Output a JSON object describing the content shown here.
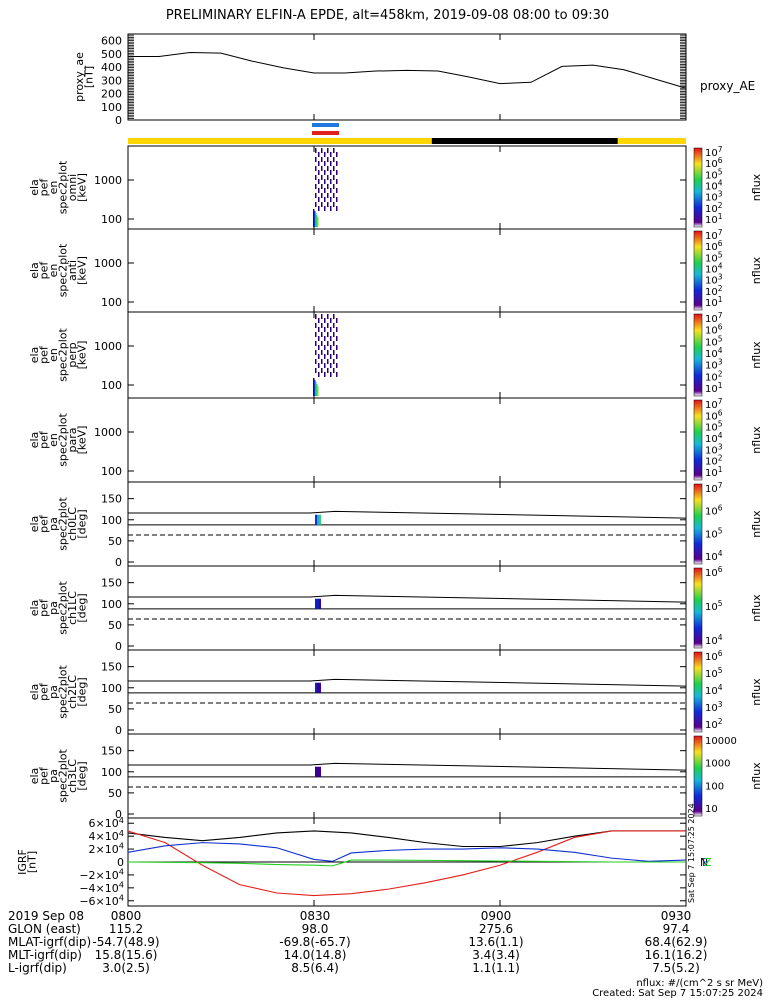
{
  "title": "PRELIMINARY ELFIN-A EPDE, alt=458km, 2019-09-08 08:00 to 09:30",
  "time_ticks": [
    "0800",
    "0830",
    "0900",
    "0930"
  ],
  "colors": {
    "black": "#000000",
    "yellow": "#FFD700",
    "red": "#E0201B",
    "blue": "#1E78E0",
    "green": "#1FD21F"
  },
  "status_bar": [
    {
      "from": "0800",
      "to": "0849",
      "color": "#FFD700"
    },
    {
      "from": "0849",
      "to": "0919",
      "color": "#000000"
    },
    {
      "from": "0919",
      "to": "0930",
      "color": "#FFD700"
    }
  ],
  "footer": {
    "rows": [
      {
        "label": "2019 Sep 08",
        "values": [
          "0800",
          "0830",
          "0900",
          "0930"
        ]
      },
      {
        "label": "GLON (east)",
        "values": [
          "115.2",
          "98.0",
          "275.6",
          "97.4"
        ]
      },
      {
        "label": "MLAT-igrf(dip)",
        "values": [
          "-54.7(48.9)",
          "-69.8(-65.7)",
          "13.6(1.1)",
          "68.4(62.9)"
        ]
      },
      {
        "label": "MLT-igrf(dip)",
        "values": [
          "15.8(15.6)",
          "14.0(14.8)",
          "3.4(3.4)",
          "16.1(16.2)"
        ]
      },
      {
        "label": "L-igrf(dip)",
        "values": [
          "3.0(2.5)",
          "8.5(6.4)",
          "1.1(1.1)",
          "7.5(5.2)"
        ]
      }
    ],
    "units_note": "nflux: #/(cm^2 s sr MeV)",
    "created": "Created: Sat Sep  7 15:07:25 2024",
    "side_stamp": "Sat Sep  7 15:07:25 2024"
  },
  "chart_data": [
    {
      "type": "line",
      "ylabel": [
        "proxy_ae",
        "[nT]"
      ],
      "yticks": [
        "600",
        "500",
        "400",
        "300",
        "200",
        "100",
        "0"
      ],
      "ylim": [
        0,
        650
      ],
      "series": [
        {
          "name": "proxy_AE",
          "x": [
            "0800",
            "0805",
            "0810",
            "0815",
            "0820",
            "0825",
            "0830",
            "0835",
            "0840",
            "0845",
            "0850",
            "0855",
            "0900",
            "0905",
            "0910",
            "0915",
            "0920",
            "0925",
            "0930"
          ],
          "values": [
            480,
            480,
            510,
            505,
            445,
            395,
            355,
            355,
            370,
            375,
            370,
            325,
            275,
            285,
            405,
            415,
            380,
            310,
            240
          ]
        }
      ]
    },
    {
      "type": "heatmap",
      "ylabel": [
        "ela",
        "pef",
        "en",
        "spec2plot",
        "omni",
        "[keV]"
      ],
      "yticks": [
        "1000",
        "100"
      ],
      "yscale": "log",
      "colorbar": {
        "label": "nflux",
        "ticks": [
          "10^7",
          "10^6",
          "10^5",
          "10^4",
          "10^3",
          "10^2",
          "10^1"
        ]
      }
    },
    {
      "type": "heatmap",
      "ylabel": [
        "ela",
        "pef",
        "en",
        "spec2plot",
        "anti",
        "[keV]"
      ],
      "yticks": [
        "1000",
        "100"
      ],
      "yscale": "log",
      "colorbar": {
        "label": "nflux",
        "ticks": [
          "10^7",
          "10^6",
          "10^5",
          "10^4",
          "10^3",
          "10^2",
          "10^1"
        ]
      }
    },
    {
      "type": "heatmap",
      "ylabel": [
        "ela",
        "pef",
        "en",
        "spec2plot",
        "perp",
        "[keV]"
      ],
      "yticks": [
        "1000",
        "100"
      ],
      "yscale": "log",
      "colorbar": {
        "label": "nflux",
        "ticks": [
          "10^7",
          "10^6",
          "10^5",
          "10^4",
          "10^3",
          "10^2",
          "10^1"
        ]
      }
    },
    {
      "type": "heatmap",
      "ylabel": [
        "ela",
        "pef",
        "en",
        "spec2plot",
        "para",
        "[keV]"
      ],
      "yticks": [
        "1000",
        "100"
      ],
      "yscale": "log",
      "colorbar": {
        "label": "nflux",
        "ticks": [
          "10^7",
          "10^6",
          "10^5",
          "10^4",
          "10^3",
          "10^2",
          "10^1"
        ]
      }
    },
    {
      "type": "heatmap",
      "ylabel": [
        "ela",
        "pef",
        "pa",
        "spec2plot",
        "ch0LC",
        "[deg]"
      ],
      "yticks": [
        "150",
        "100",
        "50",
        "0"
      ],
      "colorbar": {
        "label": "nflux",
        "ticks": [
          "10^7",
          "10^6",
          "10^5",
          "10^4"
        ]
      }
    },
    {
      "type": "heatmap",
      "ylabel": [
        "ela",
        "pef",
        "pa",
        "spec2plot",
        "ch1LC",
        "[deg]"
      ],
      "yticks": [
        "150",
        "100",
        "50",
        "0"
      ],
      "colorbar": {
        "label": "nflux",
        "ticks": [
          "10^6",
          "10^5",
          "10^4"
        ]
      }
    },
    {
      "type": "heatmap",
      "ylabel": [
        "ela",
        "pef",
        "pa",
        "spec2plot",
        "ch2LC",
        "[deg]"
      ],
      "yticks": [
        "150",
        "100",
        "50",
        "0"
      ],
      "colorbar": {
        "label": "nflux",
        "ticks": [
          "10^6",
          "10^5",
          "10^4",
          "10^3",
          "10^2"
        ]
      }
    },
    {
      "type": "heatmap",
      "ylabel": [
        "ela",
        "pef",
        "pa",
        "spec2plot",
        "ch3LC",
        "[deg]"
      ],
      "yticks": [
        "150",
        "100",
        "50",
        "0"
      ],
      "colorbar": {
        "label": "nflux",
        "ticks": [
          "10000",
          "1000",
          "100",
          "10"
        ]
      }
    },
    {
      "type": "line",
      "ylabel": [
        "IGRF",
        "[nT]"
      ],
      "yticks": [
        "6×10^4",
        "4×10^4",
        "2×10^4",
        "0",
        "−2×10^4",
        "−4×10^4",
        "−6×10^4"
      ],
      "ylim": [
        -65000,
        65000
      ],
      "legend": [
        "N",
        "E",
        "Z"
      ],
      "series": [
        {
          "name": "black",
          "x": [
            "0800",
            "0806",
            "0812",
            "0818",
            "0824",
            "0830",
            "0836",
            "0842",
            "0848",
            "0854",
            "0900",
            "0906",
            "0912",
            "0918",
            "0924",
            "0930"
          ],
          "values": [
            45000,
            38000,
            33000,
            38000,
            45000,
            48000,
            45000,
            38000,
            30000,
            24000,
            24000,
            30000,
            40000,
            48000,
            48000,
            48000
          ]
        },
        {
          "name": "red",
          "x": [
            "0800",
            "0806",
            "0812",
            "0818",
            "0824",
            "0830",
            "0836",
            "0842",
            "0848",
            "0854",
            "0900",
            "0906",
            "0912",
            "0918",
            "0924",
            "0930"
          ],
          "values": [
            48000,
            30000,
            -5000,
            -35000,
            -48000,
            -52000,
            -49000,
            -42000,
            -32000,
            -20000,
            -5000,
            15000,
            38000,
            48000,
            48000,
            48000
          ]
        },
        {
          "name": "blue",
          "x": [
            "0800",
            "0806",
            "0812",
            "0818",
            "0824",
            "0830",
            "0833",
            "0836",
            "0842",
            "0848",
            "0854",
            "0900",
            "0906",
            "0912",
            "0918",
            "0924",
            "0930"
          ],
          "values": [
            15000,
            25000,
            30000,
            28000,
            22000,
            4000,
            1000,
            14000,
            18000,
            20000,
            20000,
            22000,
            20000,
            15000,
            6000,
            1000,
            3000
          ]
        },
        {
          "name": "green",
          "x": [
            "0800",
            "0806",
            "0812",
            "0818",
            "0824",
            "0830",
            "0833",
            "0836",
            "0842",
            "0848",
            "0854",
            "0900",
            "0906",
            "0912",
            "0918",
            "0924",
            "0930"
          ],
          "values": [
            0,
            -500,
            -1000,
            -2000,
            -4000,
            -5000,
            -6000,
            3000,
            3000,
            2500,
            2000,
            1500,
            1000,
            500,
            0,
            0,
            0
          ]
        }
      ]
    }
  ]
}
